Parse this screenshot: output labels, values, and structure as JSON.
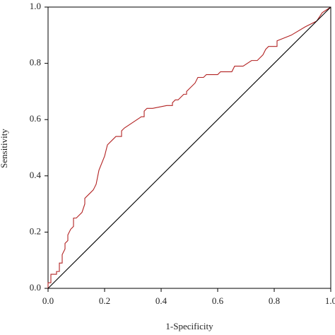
{
  "chart_data": {
    "type": "line",
    "xlabel": "1-Specificity",
    "ylabel": "Sensitivity",
    "xlim": [
      0,
      1
    ],
    "ylim": [
      0,
      1
    ],
    "xticks": [
      {
        "value": 0,
        "label": "0.0"
      },
      {
        "value": 0.2,
        "label": "0.2"
      },
      {
        "value": 0.4,
        "label": "0.4"
      },
      {
        "value": 0.6,
        "label": "0.6"
      },
      {
        "value": 0.8,
        "label": "0.8"
      },
      {
        "value": 1,
        "label": "1.0"
      }
    ],
    "yticks": [
      {
        "value": 0,
        "label": "0.0"
      },
      {
        "value": 0.2,
        "label": "0.2"
      },
      {
        "value": 0.4,
        "label": "0.4"
      },
      {
        "value": 0.6,
        "label": "0.6"
      },
      {
        "value": 0.8,
        "label": "0.8"
      },
      {
        "value": 1,
        "label": "1.0"
      }
    ],
    "series": [
      {
        "color": "#b22222",
        "x": [
          0,
          0,
          0.01,
          0.01,
          0.03,
          0.03,
          0.04,
          0.04,
          0.05,
          0.05,
          0.06,
          0.06,
          0.07,
          0.07,
          0.08,
          0.09,
          0.09,
          0.1,
          0.11,
          0.12,
          0.13,
          0.13,
          0.15,
          0.16,
          0.17,
          0.18,
          0.2,
          0.21,
          0.23,
          0.24,
          0.26,
          0.26,
          0.27,
          0.3,
          0.33,
          0.34,
          0.34,
          0.35,
          0.37,
          0.42,
          0.44,
          0.44,
          0.45,
          0.46,
          0.47,
          0.48,
          0.49,
          0.49,
          0.5,
          0.52,
          0.53,
          0.55,
          0.56,
          0.6,
          0.61,
          0.65,
          0.66,
          0.69,
          0.72,
          0.74,
          0.75,
          0.76,
          0.77,
          0.78,
          0.81,
          0.81,
          0.86,
          0.91,
          0.95,
          0.97,
          1
        ],
        "values": [
          0,
          0.02,
          0.02,
          0.05,
          0.05,
          0.06,
          0.06,
          0.09,
          0.09,
          0.12,
          0.14,
          0.16,
          0.17,
          0.19,
          0.21,
          0.22,
          0.25,
          0.25,
          0.26,
          0.27,
          0.3,
          0.32,
          0.34,
          0.35,
          0.37,
          0.42,
          0.47,
          0.51,
          0.53,
          0.54,
          0.54,
          0.56,
          0.57,
          0.59,
          0.61,
          0.61,
          0.63,
          0.64,
          0.64,
          0.65,
          0.65,
          0.66,
          0.67,
          0.67,
          0.68,
          0.69,
          0.69,
          0.7,
          0.71,
          0.73,
          0.75,
          0.75,
          0.76,
          0.76,
          0.77,
          0.77,
          0.79,
          0.79,
          0.81,
          0.81,
          0.82,
          0.83,
          0.85,
          0.86,
          0.86,
          0.88,
          0.9,
          0.93,
          0.95,
          0.98,
          1
        ]
      },
      {
        "color": "#000000",
        "x": [
          0,
          1
        ],
        "values": [
          0,
          1
        ]
      }
    ]
  }
}
